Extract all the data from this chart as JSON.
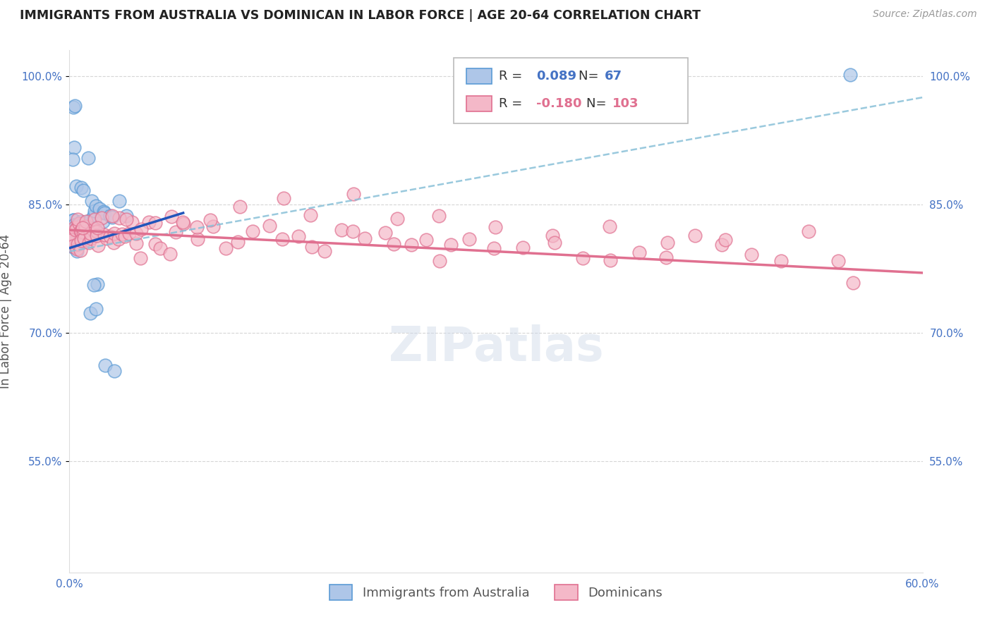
{
  "title": "IMMIGRANTS FROM AUSTRALIA VS DOMINICAN IN LABOR FORCE | AGE 20-64 CORRELATION CHART",
  "source": "Source: ZipAtlas.com",
  "ylabel": "In Labor Force | Age 20-64",
  "xlim": [
    0.0,
    0.6
  ],
  "ylim": [
    0.42,
    1.03
  ],
  "yticks": [
    0.55,
    0.7,
    0.85,
    1.0
  ],
  "ytick_labels": [
    "55.0%",
    "70.0%",
    "85.0%",
    "100.0%"
  ],
  "xticks": [
    0.0,
    0.1,
    0.2,
    0.3,
    0.4,
    0.5,
    0.6
  ],
  "xtick_labels": [
    "0.0%",
    "",
    "",
    "",
    "",
    "",
    "60.0%"
  ],
  "australia_R": 0.089,
  "australia_N": 67,
  "dominican_R": -0.18,
  "dominican_N": 103,
  "australia_color": "#aec6e8",
  "australia_edge": "#5b9bd5",
  "dominican_color": "#f4b8c8",
  "dominican_edge": "#e07090",
  "trendline_australia_color": "#2255bb",
  "trendline_dominican_color": "#e07090",
  "dashed_color": "#88c0d8",
  "watermark": "ZIPatlas",
  "background_color": "#ffffff",
  "aus_x": [
    0.001,
    0.002,
    0.002,
    0.003,
    0.003,
    0.003,
    0.003,
    0.004,
    0.004,
    0.004,
    0.004,
    0.005,
    0.005,
    0.005,
    0.005,
    0.006,
    0.006,
    0.006,
    0.006,
    0.007,
    0.007,
    0.007,
    0.007,
    0.008,
    0.008,
    0.008,
    0.009,
    0.009,
    0.009,
    0.01,
    0.01,
    0.01,
    0.011,
    0.011,
    0.012,
    0.012,
    0.013,
    0.013,
    0.014,
    0.015,
    0.015,
    0.016,
    0.017,
    0.018,
    0.019,
    0.02,
    0.021,
    0.022,
    0.024,
    0.025,
    0.027,
    0.03,
    0.035,
    0.04,
    0.003,
    0.004,
    0.006,
    0.008,
    0.01,
    0.012,
    0.015,
    0.02,
    0.025,
    0.03,
    0.02,
    0.018,
    0.55
  ],
  "aus_y": [
    0.82,
    0.81,
    0.81,
    0.905,
    0.905,
    0.82,
    0.82,
    0.82,
    0.82,
    0.82,
    0.82,
    0.82,
    0.81,
    0.82,
    0.81,
    0.82,
    0.81,
    0.82,
    0.81,
    0.82,
    0.82,
    0.81,
    0.82,
    0.81,
    0.82,
    0.82,
    0.81,
    0.82,
    0.82,
    0.81,
    0.82,
    0.82,
    0.81,
    0.82,
    0.82,
    0.81,
    0.82,
    0.81,
    0.82,
    0.82,
    0.82,
    0.84,
    0.84,
    0.84,
    0.84,
    0.84,
    0.84,
    0.84,
    0.84,
    0.84,
    0.84,
    0.84,
    0.84,
    0.84,
    0.97,
    0.96,
    0.87,
    0.87,
    0.86,
    0.9,
    0.72,
    0.72,
    0.66,
    0.66,
    0.76,
    0.76,
    1.0
  ],
  "dom_x": [
    0.001,
    0.002,
    0.003,
    0.003,
    0.004,
    0.005,
    0.005,
    0.006,
    0.006,
    0.007,
    0.007,
    0.008,
    0.008,
    0.009,
    0.01,
    0.01,
    0.011,
    0.012,
    0.012,
    0.013,
    0.014,
    0.015,
    0.016,
    0.017,
    0.018,
    0.019,
    0.02,
    0.022,
    0.024,
    0.026,
    0.028,
    0.03,
    0.032,
    0.034,
    0.036,
    0.038,
    0.04,
    0.042,
    0.044,
    0.046,
    0.048,
    0.05,
    0.055,
    0.06,
    0.065,
    0.07,
    0.075,
    0.08,
    0.09,
    0.1,
    0.11,
    0.12,
    0.13,
    0.14,
    0.15,
    0.16,
    0.17,
    0.18,
    0.19,
    0.2,
    0.21,
    0.22,
    0.23,
    0.24,
    0.25,
    0.26,
    0.27,
    0.28,
    0.3,
    0.32,
    0.34,
    0.36,
    0.38,
    0.4,
    0.42,
    0.44,
    0.46,
    0.48,
    0.5,
    0.52,
    0.54,
    0.01,
    0.02,
    0.03,
    0.04,
    0.05,
    0.06,
    0.07,
    0.08,
    0.09,
    0.1,
    0.12,
    0.15,
    0.17,
    0.2,
    0.23,
    0.26,
    0.3,
    0.34,
    0.38,
    0.42,
    0.46,
    0.55
  ],
  "dom_y": [
    0.82,
    0.82,
    0.82,
    0.81,
    0.82,
    0.81,
    0.82,
    0.82,
    0.81,
    0.82,
    0.81,
    0.82,
    0.81,
    0.82,
    0.82,
    0.81,
    0.82,
    0.81,
    0.82,
    0.81,
    0.82,
    0.82,
    0.81,
    0.82,
    0.81,
    0.82,
    0.81,
    0.82,
    0.81,
    0.82,
    0.81,
    0.81,
    0.81,
    0.81,
    0.82,
    0.81,
    0.82,
    0.81,
    0.82,
    0.81,
    0.82,
    0.81,
    0.82,
    0.81,
    0.82,
    0.81,
    0.82,
    0.82,
    0.81,
    0.82,
    0.81,
    0.82,
    0.81,
    0.82,
    0.81,
    0.8,
    0.81,
    0.8,
    0.81,
    0.8,
    0.81,
    0.8,
    0.81,
    0.8,
    0.81,
    0.8,
    0.8,
    0.8,
    0.8,
    0.8,
    0.8,
    0.8,
    0.8,
    0.8,
    0.8,
    0.8,
    0.8,
    0.8,
    0.79,
    0.79,
    0.79,
    0.83,
    0.82,
    0.83,
    0.83,
    0.83,
    0.84,
    0.83,
    0.83,
    0.84,
    0.82,
    0.84,
    0.86,
    0.84,
    0.86,
    0.84,
    0.85,
    0.82,
    0.82,
    0.82,
    0.82,
    0.81,
    0.76
  ],
  "aus_trendline": [
    0.799,
    0.84
  ],
  "dom_trendline": [
    0.82,
    0.77
  ],
  "dashed_line": [
    0.795,
    0.975
  ]
}
